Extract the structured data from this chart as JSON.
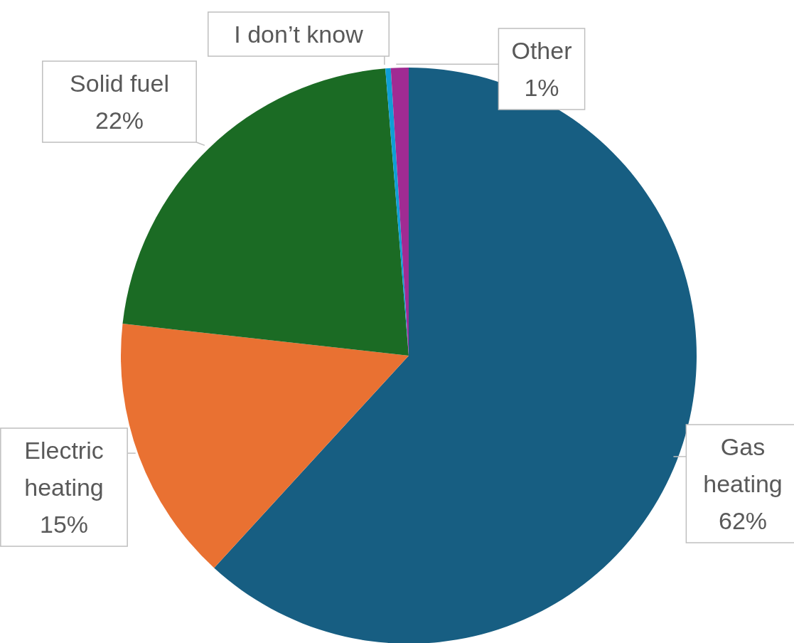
{
  "chart_data": {
    "type": "pie",
    "categories": [
      "Gas heating",
      "Electric heating",
      "Solid fuel",
      "I don’t know",
      "Other"
    ],
    "values": [
      62,
      15,
      22,
      0.3,
      1
    ],
    "value_labels": [
      "62%",
      "15%",
      "22%",
      null,
      "1%"
    ],
    "colors": [
      "#175e82",
      "#e97132",
      "#1b6b24",
      "#0f9ed5",
      "#a02b93"
    ]
  }
}
